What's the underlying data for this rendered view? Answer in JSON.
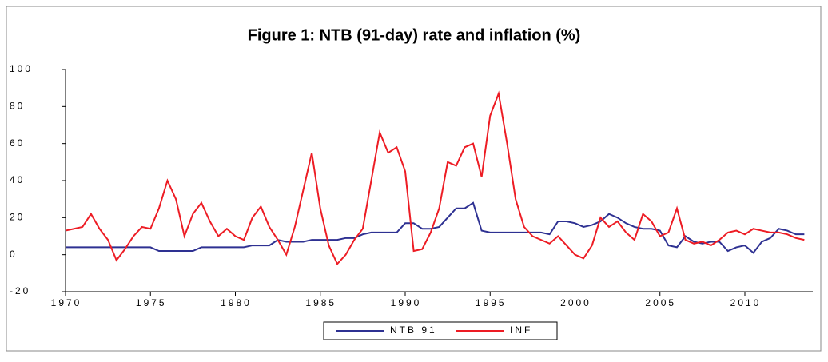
{
  "chart_data": {
    "type": "line",
    "title": "Figure 1: NTB (91-day) rate and inflation (%)",
    "x": [
      1970,
      1970.5,
      1971,
      1971.5,
      1972,
      1972.5,
      1973,
      1973.5,
      1974,
      1974.5,
      1975,
      1975.5,
      1976,
      1976.5,
      1977,
      1977.5,
      1978,
      1978.5,
      1979,
      1979.5,
      1980,
      1980.5,
      1981,
      1981.5,
      1982,
      1982.5,
      1983,
      1983.5,
      1984,
      1984.5,
      1985,
      1985.5,
      1986,
      1986.5,
      1987,
      1987.5,
      1988,
      1988.5,
      1989,
      1989.5,
      1990,
      1990.5,
      1991,
      1991.5,
      1992,
      1992.5,
      1993,
      1993.5,
      1994,
      1994.5,
      1995,
      1995.5,
      1996,
      1996.5,
      1997,
      1997.5,
      1998,
      1998.5,
      1999,
      1999.5,
      2000,
      2000.5,
      2001,
      2001.5,
      2002,
      2002.5,
      2003,
      2003.5,
      2004,
      2004.5,
      2005,
      2005.5,
      2006,
      2006.5,
      2007,
      2007.5,
      2008,
      2008.5,
      2009,
      2009.5,
      2010,
      2010.5,
      2011,
      2011.5,
      2012,
      2012.5,
      2013,
      2013.5
    ],
    "series": [
      {
        "name": "NTB 91",
        "color": "#2e3192",
        "values": [
          4,
          4,
          4,
          4,
          4,
          4,
          4,
          4,
          4,
          4,
          4,
          2,
          2,
          2,
          2,
          2,
          4,
          4,
          4,
          4,
          4,
          4,
          5,
          5,
          5,
          8,
          7,
          7,
          7,
          8,
          8,
          8,
          8,
          9,
          9,
          11,
          12,
          12,
          12,
          12,
          17,
          17,
          14,
          14,
          15,
          20,
          25,
          25,
          28,
          13,
          12,
          12,
          12,
          12,
          12,
          12,
          12,
          11,
          18,
          18,
          17,
          15,
          16,
          18,
          22,
          20,
          17,
          15,
          14,
          14,
          13,
          5,
          4,
          10,
          7,
          6,
          7,
          7,
          2,
          4,
          5,
          1,
          7,
          9,
          14,
          13,
          11,
          11
        ]
      },
      {
        "name": "INF",
        "color": "#ed1c24",
        "values": [
          13,
          14,
          15,
          22,
          14,
          8,
          -3,
          3,
          10,
          15,
          14,
          25,
          40,
          30,
          10,
          22,
          28,
          18,
          10,
          14,
          10,
          8,
          20,
          26,
          15,
          8,
          0,
          15,
          35,
          55,
          25,
          5,
          -5,
          0,
          8,
          14,
          40,
          66,
          55,
          58,
          45,
          2,
          3,
          12,
          25,
          50,
          48,
          58,
          60,
          42,
          75,
          87,
          60,
          30,
          15,
          10,
          8,
          6,
          10,
          5,
          0,
          -2,
          5,
          20,
          15,
          18,
          12,
          8,
          22,
          18,
          10,
          12,
          25,
          8,
          6,
          7,
          5,
          8,
          12,
          13,
          11,
          14,
          13,
          12,
          12,
          11,
          9,
          8
        ]
      }
    ],
    "xlim": [
      1970,
      2014
    ],
    "xticks": [
      1970,
      1975,
      1980,
      1985,
      1990,
      1995,
      2000,
      2005,
      2010
    ],
    "ylim": [
      -20,
      100
    ],
    "yticks": [
      -20,
      0,
      20,
      40,
      60,
      80,
      100
    ],
    "grid": false,
    "legend": "bottom"
  }
}
